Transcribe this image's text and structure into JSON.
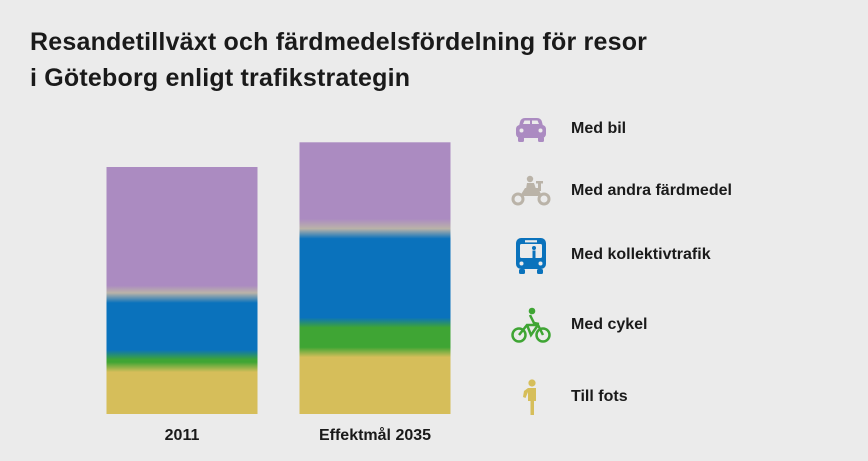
{
  "title": {
    "line1": "Resandetillväxt och färdmedelsfördelning för resor",
    "line2": "i Göteborg enligt trafikstrategin"
  },
  "chart_data": {
    "type": "bar",
    "stacked": true,
    "categories": [
      "2011",
      "Effektmål 2035"
    ],
    "series": [
      {
        "name": "Till fots",
        "color": "#d6be5a",
        "values": [
          19,
          25
        ]
      },
      {
        "name": "Med cykel",
        "color": "#3fa534",
        "values": [
          5,
          12
        ]
      },
      {
        "name": "Med kollektivtrafik",
        "color": "#0a72bc",
        "values": [
          23,
          36
        ]
      },
      {
        "name": "Med andra färdmedel",
        "color": "#bab3a8",
        "values": [
          3,
          4
        ]
      },
      {
        "name": "Med bil",
        "color": "#ab8bc1",
        "values": [
          50,
          33
        ]
      }
    ],
    "ylim": [
      0,
      110
    ],
    "legend_position": "right",
    "grid": false,
    "xlabel": "",
    "ylabel": ""
  },
  "legend": {
    "items": [
      {
        "label": "Med bil",
        "icon": "car-icon",
        "color": "#ab8bc1"
      },
      {
        "label": "Med andra färdmedel",
        "icon": "moped-icon",
        "color": "#bab3a8"
      },
      {
        "label": "Med kollektivtrafik",
        "icon": "bus-icon",
        "color": "#0a72bc"
      },
      {
        "label": "Med cykel",
        "icon": "bicycle-icon",
        "color": "#3fa534"
      },
      {
        "label": "Till fots",
        "icon": "pedestrian-icon",
        "color": "#d6be5a"
      }
    ]
  }
}
